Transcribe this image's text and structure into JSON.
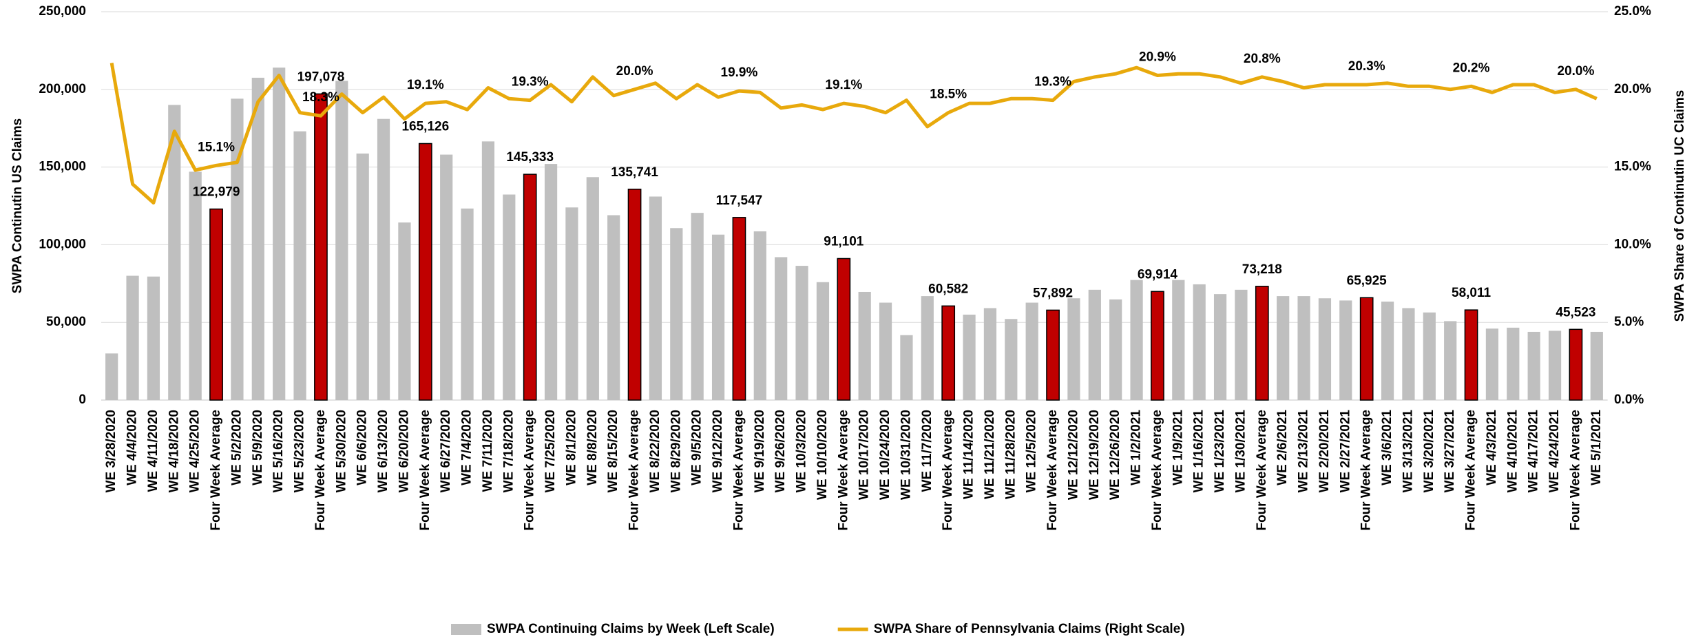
{
  "chart_data": {
    "type": "bar_line",
    "y_label": "SWPA Continutin US Claims",
    "y2_label": "SWPA Share of Continutin UC Claims",
    "categories": [
      "WE 3/28/2020",
      "WE 4/4/2020",
      "WE 4/11/2020",
      "WE 4/18/2020",
      "WE 4/25/2020",
      "Four Week Average",
      "WE 5/2/2020",
      "WE 5/9/2020",
      "WE 5/16/2020",
      "WE 5/23/2020",
      "Four Week Average",
      "WE 5/30/2020",
      "WE 6/6/2020",
      "WE 6/13/2020",
      "WE 6/20/2020",
      "Four Week Average",
      "WE 6/27/2020",
      "WE 7/4/2020",
      "WE 7/11/2020",
      "WE 7/18/2020",
      "Four Week Average",
      "WE 7/25/2020",
      "WE 8/1/2020",
      "WE 8/8/2020",
      "WE 8/15/2020",
      "Four Week Average",
      "WE 8/22/2020",
      "WE 8/29/2020",
      "WE 9/5/2020",
      "WE 9/12/2020",
      "Four Week Average",
      "WE 9/19/2020",
      "WE 9/26/2020",
      "WE 10/3/2020",
      "WE 10/10/2020",
      "Four Week Average",
      "WE 10/17/2020",
      "WE 10/24/2020",
      "WE 10/31/2020",
      "WE 11/7/2020",
      "Four Week Average",
      "WE 11/14/2020",
      "WE 11/21/2020",
      "WE 11/28/2020",
      "WE 12/5/2020",
      "Four Week Average",
      "WE 12/12/2020",
      "WE 12/19/2020",
      "WE 12/26/2020",
      "WE 1/2/2021",
      "Four Week Average",
      "WE 1/9/2021",
      "WE 1/16/2021",
      "WE 1/23/2021",
      "WE 1/30/2021",
      "Four Week Average",
      "WE 2/6/2021",
      "WE 2/13/2021",
      "WE 2/20/2021",
      "WE 2/27/2021",
      "Four Week Average",
      "WE 3/6/2021",
      "WE 3/13/2021",
      "WE 3/20/2021",
      "WE 3/27/2021",
      "Four Week Average",
      "WE 4/3/2021",
      "WE 4/10/2021",
      "WE 4/17/2021",
      "WE 4/24/2021",
      "Four Week Average",
      "WE 5/1/2021"
    ],
    "series": [
      {
        "name": "SWPA Continuing Claims by Week (Left Scale)",
        "type": "bar",
        "color": "#bfbfbf",
        "values": [
          30000,
          80000,
          79500,
          190000,
          147000,
          122979,
          194000,
          207500,
          214000,
          173000,
          197078,
          205500,
          158700,
          181000,
          114300,
          165126,
          158000,
          123300,
          166500,
          132300,
          145333,
          152000,
          124000,
          143500,
          119000,
          135741,
          131000,
          110700,
          120500,
          106500,
          117547,
          108600,
          92000,
          86400,
          75900,
          91101,
          69600,
          62700,
          41800,
          66900,
          60582,
          55000,
          59200,
          52200,
          62700,
          57892,
          65500,
          71000,
          64800,
          77300,
          69914,
          77300,
          74500,
          68200,
          71000,
          73218,
          66900,
          66900,
          65500,
          64100,
          65925,
          63400,
          59200,
          56400,
          50800,
          58011,
          46000,
          46600,
          43900,
          44600,
          45523,
          43900
        ],
        "value_labels": [
          null,
          null,
          null,
          null,
          null,
          "122,979",
          null,
          null,
          null,
          null,
          "197,078",
          null,
          null,
          null,
          null,
          "165,126",
          null,
          null,
          null,
          null,
          "145,333",
          null,
          null,
          null,
          null,
          "135,741",
          null,
          null,
          null,
          null,
          "117,547",
          null,
          null,
          null,
          null,
          "91,101",
          null,
          null,
          null,
          null,
          "60,582",
          null,
          null,
          null,
          null,
          "57,892",
          null,
          null,
          null,
          null,
          "69,914",
          null,
          null,
          null,
          null,
          "73,218",
          null,
          null,
          null,
          null,
          "65,925",
          null,
          null,
          null,
          null,
          "58,011",
          null,
          null,
          null,
          null,
          "45,523",
          null
        ],
        "colors": [
          "#bfbfbf",
          "#bfbfbf",
          "#bfbfbf",
          "#bfbfbf",
          "#bfbfbf",
          "#c00000",
          "#bfbfbf",
          "#bfbfbf",
          "#bfbfbf",
          "#bfbfbf",
          "#c00000",
          "#bfbfbf",
          "#bfbfbf",
          "#bfbfbf",
          "#bfbfbf",
          "#c00000",
          "#bfbfbf",
          "#bfbfbf",
          "#bfbfbf",
          "#bfbfbf",
          "#c00000",
          "#bfbfbf",
          "#bfbfbf",
          "#bfbfbf",
          "#bfbfbf",
          "#c00000",
          "#bfbfbf",
          "#bfbfbf",
          "#bfbfbf",
          "#bfbfbf",
          "#c00000",
          "#bfbfbf",
          "#bfbfbf",
          "#bfbfbf",
          "#bfbfbf",
          "#c00000",
          "#bfbfbf",
          "#bfbfbf",
          "#bfbfbf",
          "#bfbfbf",
          "#c00000",
          "#bfbfbf",
          "#bfbfbf",
          "#bfbfbf",
          "#bfbfbf",
          "#c00000",
          "#bfbfbf",
          "#bfbfbf",
          "#bfbfbf",
          "#bfbfbf",
          "#c00000",
          "#bfbfbf",
          "#bfbfbf",
          "#bfbfbf",
          "#bfbfbf",
          "#c00000",
          "#bfbfbf",
          "#bfbfbf",
          "#bfbfbf",
          "#bfbfbf",
          "#c00000",
          "#bfbfbf",
          "#bfbfbf",
          "#bfbfbf",
          "#bfbfbf",
          "#c00000",
          "#bfbfbf",
          "#bfbfbf",
          "#bfbfbf",
          "#bfbfbf",
          "#c00000",
          "#bfbfbf"
        ]
      },
      {
        "name": "SWPA Share of Pennsylvania Claims (Right Scale)",
        "type": "line",
        "axis": "y2",
        "color": "#e8a90c",
        "values": [
          21.7,
          13.9,
          12.7,
          17.3,
          14.8,
          15.1,
          15.3,
          19.2,
          20.9,
          18.5,
          18.3,
          19.7,
          18.5,
          19.5,
          18.1,
          19.1,
          19.2,
          18.7,
          20.1,
          19.4,
          19.3,
          20.3,
          19.2,
          20.8,
          19.6,
          20.0,
          20.4,
          19.4,
          20.3,
          19.5,
          19.9,
          19.8,
          18.8,
          19.0,
          18.7,
          19.1,
          18.9,
          18.5,
          19.3,
          17.6,
          18.5,
          19.1,
          19.1,
          19.4,
          19.4,
          19.3,
          20.5,
          20.8,
          21.0,
          21.4,
          20.9,
          21.0,
          21.0,
          20.8,
          20.4,
          20.8,
          20.5,
          20.1,
          20.3,
          20.3,
          20.3,
          20.4,
          20.2,
          20.2,
          20.0,
          20.2,
          19.8,
          20.3,
          20.3,
          19.8,
          20.0,
          19.4
        ],
        "value_labels": [
          null,
          null,
          null,
          null,
          null,
          "15.1%",
          null,
          null,
          null,
          null,
          "18.3%",
          null,
          null,
          null,
          null,
          "19.1%",
          null,
          null,
          null,
          null,
          "19.3%",
          null,
          null,
          null,
          null,
          "20.0%",
          null,
          null,
          null,
          null,
          "19.9%",
          null,
          null,
          null,
          null,
          "19.1%",
          null,
          null,
          null,
          null,
          "18.5%",
          null,
          null,
          null,
          null,
          "19.3%",
          null,
          null,
          null,
          null,
          "20.9%",
          null,
          null,
          null,
          null,
          "20.8%",
          null,
          null,
          null,
          null,
          "20.3%",
          null,
          null,
          null,
          null,
          "20.2%",
          null,
          null,
          null,
          null,
          "20.0%",
          null
        ]
      }
    ],
    "ylim": [
      0,
      250000
    ],
    "yticks": [
      0,
      {
        "value": 50000,
        "label": "50,000"
      },
      {
        "value": 100000,
        "label": "100,000"
      },
      {
        "value": 150000,
        "label": "150,000"
      },
      {
        "value": 200000,
        "label": "200,000"
      },
      {
        "value": 250000,
        "label": "250,000"
      }
    ],
    "y2lim": [
      0,
      25
    ],
    "y2ticks": [
      {
        "value": 0,
        "label": "0.0%"
      },
      {
        "value": 5,
        "label": "5.0%"
      },
      {
        "value": 10,
        "label": "10.0%"
      },
      {
        "value": 15,
        "label": "15.0%"
      },
      {
        "value": 20,
        "label": "20.0%"
      },
      {
        "value": 25,
        "label": "25.0%"
      }
    ],
    "grid": true,
    "legend": "bottom"
  }
}
